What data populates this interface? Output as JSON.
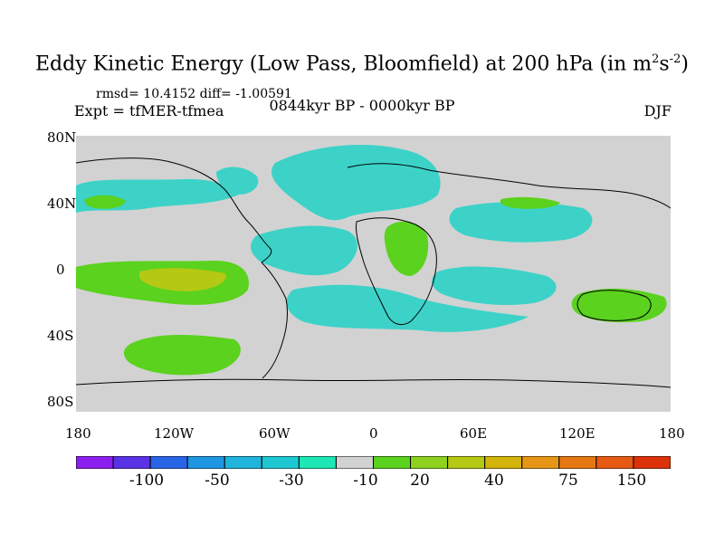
{
  "title": {
    "main": "Eddy Kinetic Energy (Low Pass, Bloomfield) at 200 hPa (in m",
    "sup1": "2",
    "mid": "s",
    "sup2": "-2",
    "close": ")"
  },
  "stats": "rmsd= 10.4152 diff= -1.00591",
  "experiment": "Expt = tfMER-tfmea",
  "period": "0844kyr BP - 0000kyr BP",
  "season": "DJF",
  "axes": {
    "lat_ticks": [
      "80N",
      "40N",
      "0",
      "40S",
      "80S"
    ],
    "lon_ticks": [
      "180",
      "120W",
      "60W",
      "0",
      "60E",
      "120E",
      "180"
    ]
  },
  "colorbar": {
    "colors": [
      "#8c1ff0",
      "#5a32e6",
      "#2864e6",
      "#1e96e1",
      "#1eb4dc",
      "#1ec8d2",
      "#1ee6b4",
      "#d2d2d2",
      "#5ad21e",
      "#8cd21e",
      "#b4c814",
      "#d2b40a",
      "#e69614",
      "#e67814",
      "#e65a14",
      "#dc320a"
    ],
    "labels": [
      "-100",
      "-50",
      "-30",
      "-10",
      "20",
      "40",
      "75",
      "150"
    ]
  },
  "map_colors": {
    "ocean_bg": "#d2d2d2",
    "neg_light": "#3cd2c8",
    "neg_mid": "#1eb4dc",
    "pos_light": "#5ad21e",
    "pos_mid": "#8cd21e",
    "pos_strong": "#b4c814"
  }
}
